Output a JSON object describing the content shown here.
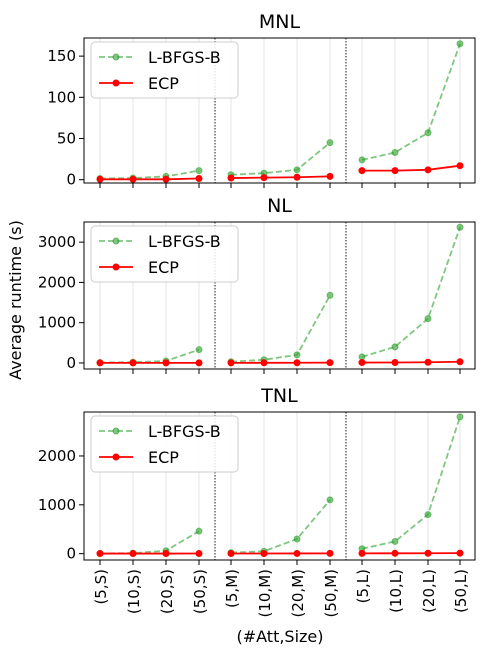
{
  "figure": {
    "ylabel": "Average runtime (s)",
    "xlabel": "(#Att,Size)"
  },
  "chart_data": [
    {
      "type": "line",
      "title": "MNL",
      "categories": [
        "(5,S)",
        "(10,S)",
        "(20,S)",
        "(50,S)",
        "(5,M)",
        "(10,M)",
        "(20,M)",
        "(50,M)",
        "(5,L)",
        "(10,L)",
        "(20,L)",
        "(50,L)"
      ],
      "groups": [
        [
          0,
          1,
          2,
          3
        ],
        [
          4,
          5,
          6,
          7
        ],
        [
          8,
          9,
          10,
          11
        ]
      ],
      "ylim": [
        -4,
        172
      ],
      "yticks": [
        0,
        50,
        100,
        150
      ],
      "legend": "top-left",
      "grid": "x",
      "series": [
        {
          "name": "L-BFGS-B",
          "color": "#2ca02c",
          "style": "dashed",
          "values": [
            1.5,
            2,
            4,
            11,
            6,
            8,
            12,
            45,
            24,
            33,
            57,
            165
          ]
        },
        {
          "name": "ECP",
          "color": "#ff0000",
          "style": "solid",
          "values": [
            0.5,
            0.5,
            0.5,
            1.5,
            2,
            2.5,
            3,
            4,
            11,
            11,
            12,
            17
          ]
        }
      ]
    },
    {
      "type": "line",
      "title": "NL",
      "categories": [
        "(5,S)",
        "(10,S)",
        "(20,S)",
        "(50,S)",
        "(5,M)",
        "(10,M)",
        "(20,M)",
        "(50,M)",
        "(5,L)",
        "(10,L)",
        "(20,L)",
        "(50,L)"
      ],
      "groups": [
        [
          0,
          1,
          2,
          3
        ],
        [
          4,
          5,
          6,
          7
        ],
        [
          8,
          9,
          10,
          11
        ]
      ],
      "ylim": [
        -150,
        3500
      ],
      "yticks": [
        0,
        1000,
        2000,
        3000
      ],
      "legend": "top-left",
      "grid": "x",
      "series": [
        {
          "name": "L-BFGS-B",
          "color": "#2ca02c",
          "style": "dashed",
          "values": [
            10,
            20,
            50,
            330,
            30,
            80,
            200,
            1680,
            150,
            400,
            1100,
            3370
          ]
        },
        {
          "name": "ECP",
          "color": "#ff0000",
          "style": "solid",
          "values": [
            2,
            2,
            2,
            3,
            3,
            4,
            5,
            8,
            10,
            12,
            18,
            30
          ]
        }
      ]
    },
    {
      "type": "line",
      "title": "TNL",
      "categories": [
        "(5,S)",
        "(10,S)",
        "(20,S)",
        "(50,S)",
        "(5,M)",
        "(10,M)",
        "(20,M)",
        "(50,M)",
        "(5,L)",
        "(10,L)",
        "(20,L)",
        "(50,L)"
      ],
      "groups": [
        [
          0,
          1,
          2,
          3
        ],
        [
          4,
          5,
          6,
          7
        ],
        [
          8,
          9,
          10,
          11
        ]
      ],
      "ylim": [
        -130,
        2900
      ],
      "yticks": [
        0,
        1000,
        2000
      ],
      "legend": "top-left",
      "grid": "x",
      "series": [
        {
          "name": "L-BFGS-B",
          "color": "#2ca02c",
          "style": "dashed",
          "values": [
            5,
            10,
            60,
            460,
            20,
            50,
            300,
            1100,
            100,
            250,
            800,
            2800
          ]
        },
        {
          "name": "ECP",
          "color": "#ff0000",
          "style": "solid",
          "values": [
            2,
            2,
            2,
            3,
            3,
            3,
            4,
            5,
            6,
            7,
            8,
            10
          ]
        }
      ]
    }
  ]
}
